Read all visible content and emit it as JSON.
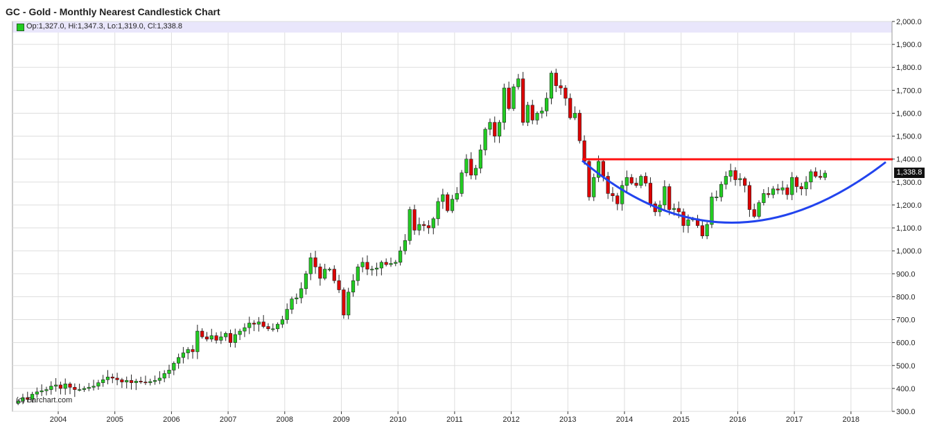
{
  "title": "GC - Gold - Monthly Nearest Candlestick Chart",
  "ohlc_legend": "Op:1,327.0, Hi:1,347.3, Lo:1,319.0, Cl:1,338.8",
  "watermark": "(c) Barchart.com",
  "last_price_label": "1,338.8",
  "colors": {
    "up": "#22cc22",
    "down": "#dd0000",
    "resistance": "#ff1111",
    "arc": "#2244ee",
    "grid": "#dddddd"
  },
  "chart_data": {
    "type": "candlestick",
    "title": "GC - Gold - Monthly Nearest Candlestick Chart",
    "ylim": [
      300,
      2000
    ],
    "yticks": [
      "2,000.0",
      "1,900.0",
      "1,800.0",
      "1,700.0",
      "1,600.0",
      "1,500.0",
      "1,400.0",
      "1,300.0",
      "1,200.0",
      "1,100.0",
      "1,000.0",
      "900.0",
      "800.0",
      "700.0",
      "600.0",
      "500.0",
      "400.0",
      "300.0"
    ],
    "xticks": [
      "2004",
      "2005",
      "2006",
      "2007",
      "2008",
      "2009",
      "2010",
      "2011",
      "2012",
      "2013",
      "2014",
      "2015",
      "2016",
      "2017",
      "2018"
    ],
    "x_start_year": 2003.25,
    "closes": [
      345,
      360,
      352,
      375,
      385,
      390,
      395,
      410,
      415,
      400,
      420,
      405,
      395,
      395,
      400,
      405,
      410,
      425,
      438,
      450,
      445,
      438,
      428,
      435,
      425,
      432,
      428,
      425,
      430,
      435,
      445,
      465,
      480,
      510,
      535,
      555,
      570,
      560,
      650,
      625,
      615,
      630,
      610,
      625,
      640,
      600,
      635,
      650,
      665,
      685,
      680,
      690,
      670,
      660,
      660,
      680,
      700,
      745,
      790,
      795,
      835,
      900,
      970,
      930,
      880,
      920,
      920,
      870,
      830,
      720,
      820,
      870,
      930,
      950,
      920,
      920,
      925,
      950,
      940,
      945,
      950,
      1000,
      1045,
      1180,
      1090,
      1115,
      1110,
      1100,
      1140,
      1215,
      1245,
      1175,
      1225,
      1250,
      1340,
      1400,
      1330,
      1360,
      1440,
      1530,
      1560,
      1500,
      1560,
      1710,
      1620,
      1715,
      1750,
      1560,
      1635,
      1570,
      1600,
      1610,
      1665,
      1775,
      1720,
      1710,
      1665,
      1580,
      1600,
      1480,
      1390,
      1235,
      1320,
      1390,
      1325,
      1250,
      1240,
      1205,
      1285,
      1320,
      1295,
      1285,
      1325,
      1295,
      1205,
      1170,
      1200,
      1280,
      1180,
      1185,
      1170,
      1110,
      1135,
      1140,
      1110,
      1065,
      1115,
      1235,
      1235,
      1290,
      1325,
      1350,
      1310,
      1315,
      1285,
      1180,
      1150,
      1210,
      1250,
      1245,
      1270,
      1265,
      1275,
      1245,
      1320,
      1280,
      1270,
      1300,
      1345,
      1325,
      1320,
      1338.8
    ]
  }
}
